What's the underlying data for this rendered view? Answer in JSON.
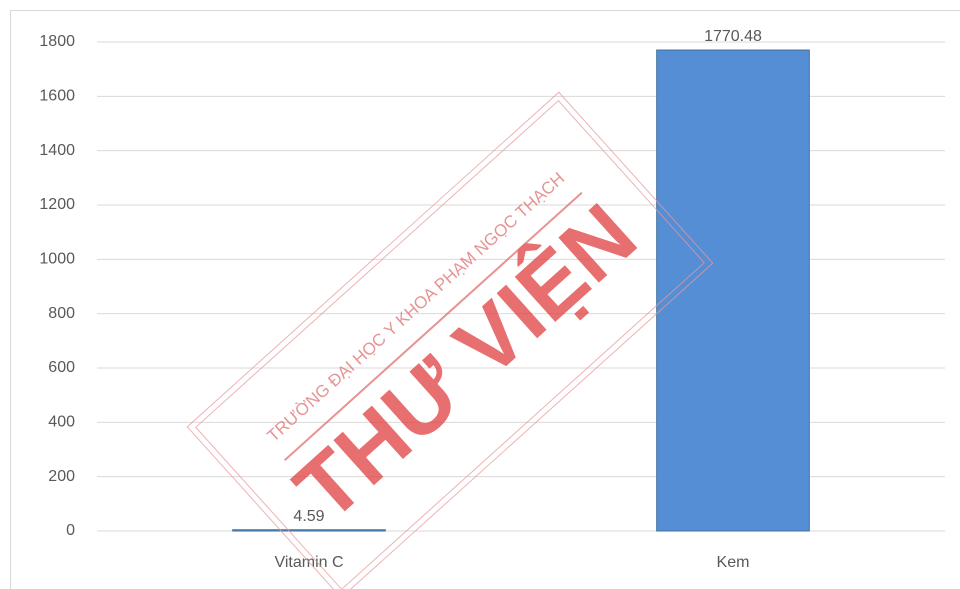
{
  "chart_data": {
    "type": "bar",
    "categories": [
      "Vitamin C",
      "Kem"
    ],
    "values": [
      4.59,
      1770.48
    ],
    "color": "#558ed5",
    "ylim": [
      0,
      1800
    ],
    "yticks": [
      0,
      200,
      400,
      600,
      800,
      1000,
      1200,
      1400,
      1600,
      1800
    ],
    "grid": true,
    "annotations": [
      "TRƯỜNG ĐẠI HỌC Y KHOA PHẠM NGỌC THẠCH",
      "THƯ VIỆN"
    ]
  }
}
